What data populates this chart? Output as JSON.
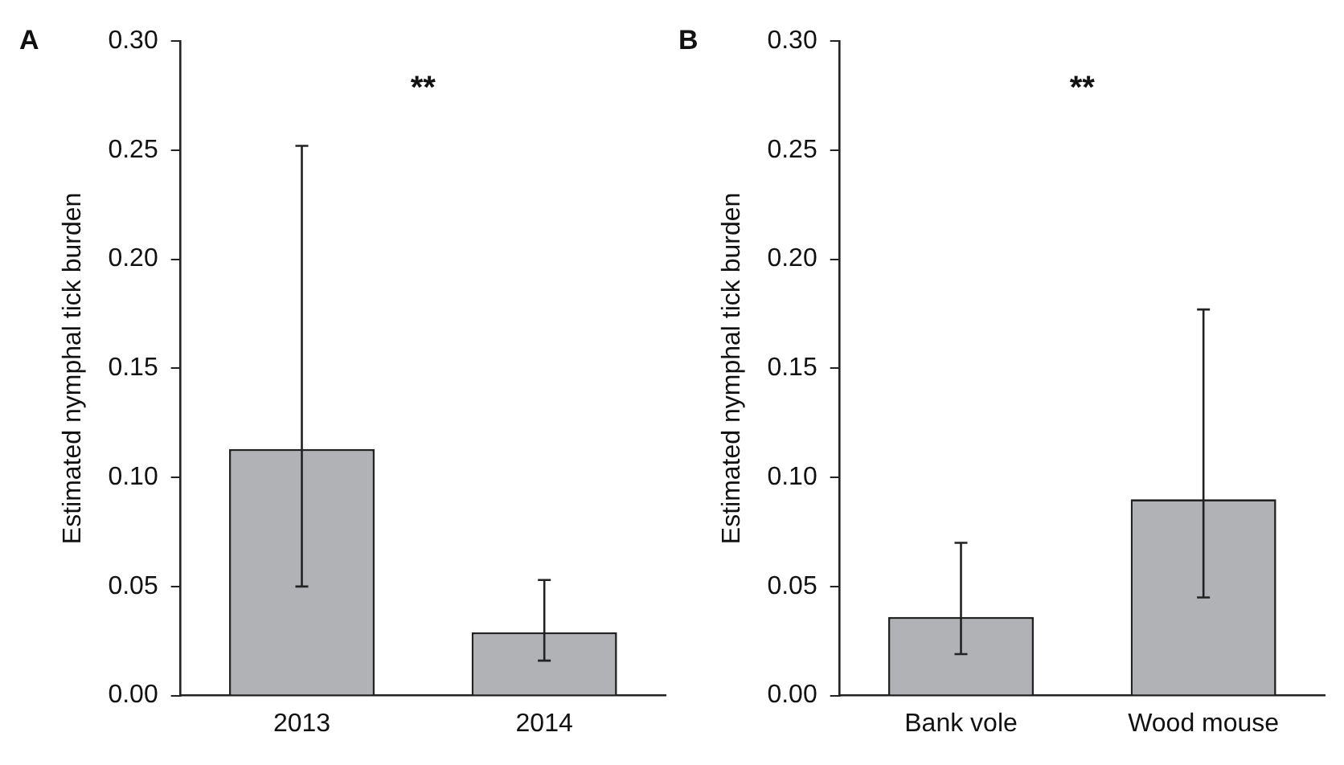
{
  "chart_data": [
    {
      "type": "bar",
      "title": "A",
      "ylabel": "Estimated nymphal tick burden",
      "categories": [
        "2013",
        "2014"
      ],
      "values": [
        0.113,
        0.029
      ],
      "errors": [
        [
          0.05,
          0.252
        ],
        [
          0.016,
          0.053
        ]
      ],
      "color": "#b1b2b6",
      "ylim": [
        0,
        0.3
      ],
      "yticks": [
        {
          "value": 0,
          "label": "0.00"
        },
        0.05,
        {
          "value": 0.1,
          "label": "0.10"
        },
        0.15,
        {
          "value": 0.2,
          "label": "0.20"
        },
        0.25,
        {
          "value": 0.3,
          "label": "0.30"
        }
      ],
      "grid": false,
      "annotations": [
        "**"
      ]
    },
    {
      "type": "bar",
      "title": "B",
      "ylabel": "Estimated nymphal tick burden",
      "categories": [
        "Bank vole",
        "Wood mouse"
      ],
      "values": [
        0.036,
        0.09
      ],
      "errors": [
        [
          0.019,
          0.07
        ],
        [
          0.045,
          0.177
        ]
      ],
      "color": "#b1b2b6",
      "ylim": [
        0,
        0.3
      ],
      "yticks": [
        {
          "value": 0,
          "label": "0.00"
        },
        0.05,
        {
          "value": 0.1,
          "label": "0.10"
        },
        0.15,
        {
          "value": 0.2,
          "label": "0.20"
        },
        0.25,
        {
          "value": 0.3,
          "label": "0.30"
        }
      ],
      "grid": false,
      "annotations": [
        "**"
      ]
    }
  ]
}
